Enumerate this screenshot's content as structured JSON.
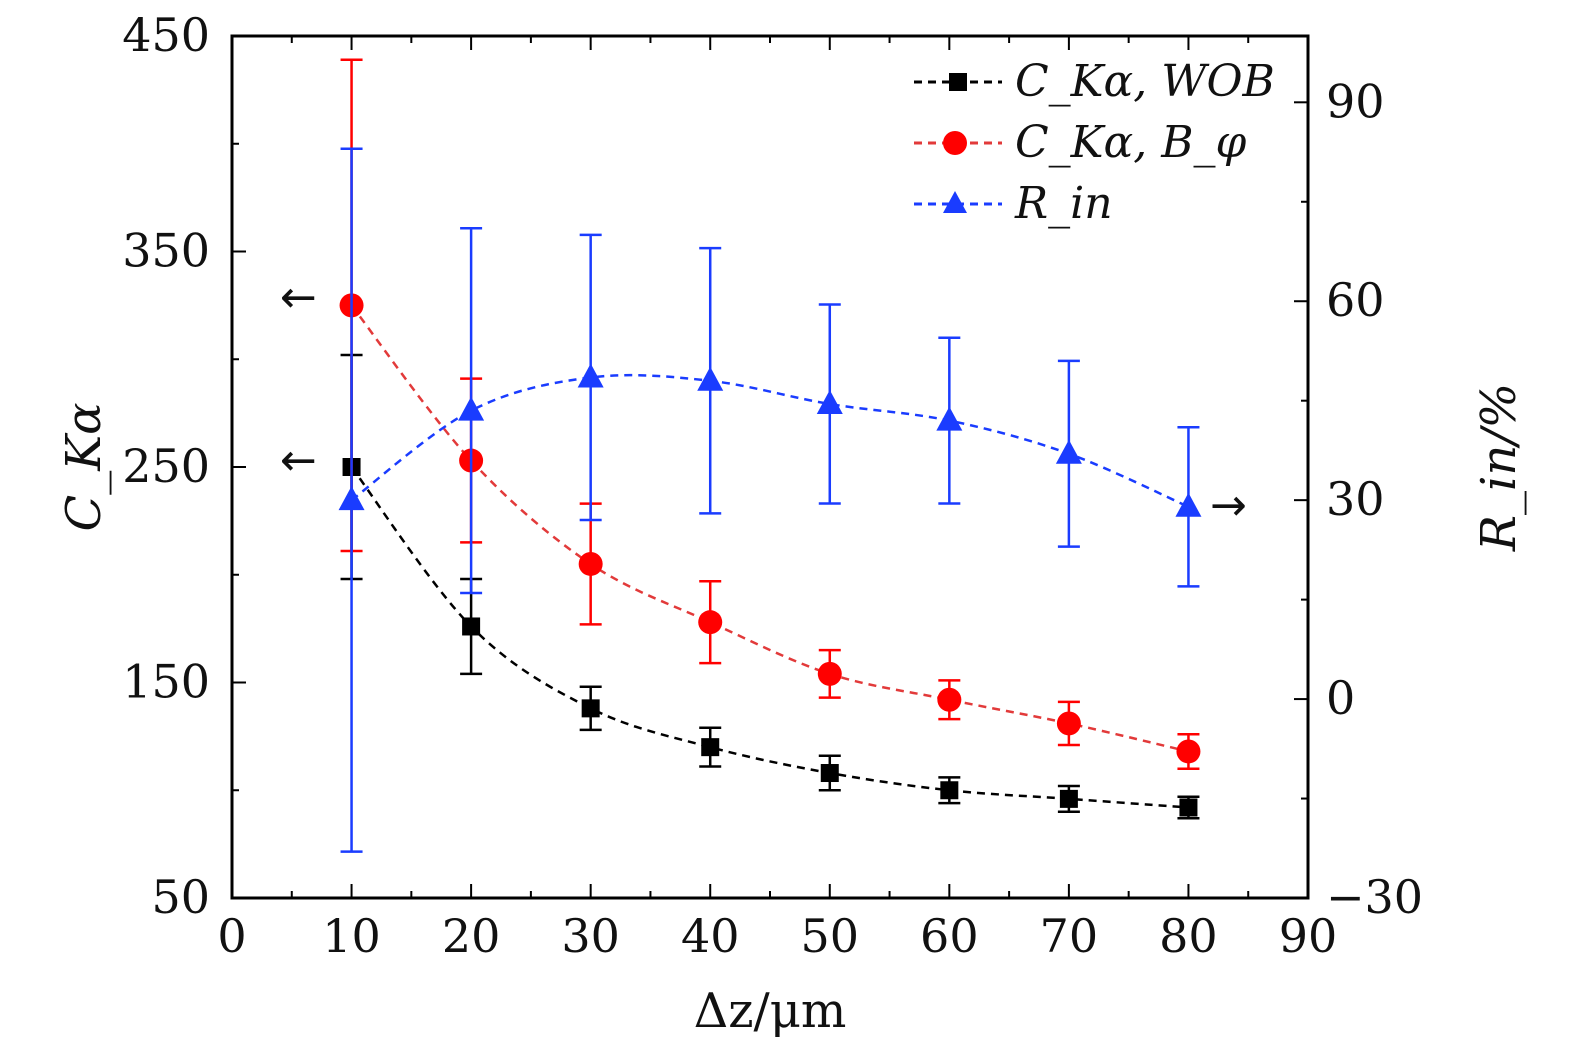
{
  "chart_data": {
    "type": "line",
    "x": [
      10,
      20,
      30,
      40,
      50,
      60,
      70,
      80
    ],
    "xlim": [
      0,
      90
    ],
    "xticks": [
      "0",
      "10",
      "20",
      "30",
      "40",
      "50",
      "60",
      "70",
      "80",
      "90"
    ],
    "xlabel": "Δz/μm",
    "ylabel": "C_Kα",
    "ylim": [
      50,
      450
    ],
    "yticks": [
      "50",
      "150",
      "250",
      "350",
      "450"
    ],
    "y2label": "R_in/%",
    "y2lim": [
      -30,
      100
    ],
    "y2ticks": [
      "−30",
      "0",
      "30",
      "60",
      "90"
    ],
    "grid": false,
    "legend_position": "top-right",
    "series": [
      {
        "name": "C_Kα, WOB",
        "axis": "left",
        "color": "#000000",
        "marker": "square",
        "values": [
          250,
          176,
          138,
          120,
          108,
          100,
          96,
          92
        ],
        "errors": [
          52,
          22,
          10,
          9,
          8,
          6,
          6,
          5
        ]
      },
      {
        "name": "C_Kα, B_φ",
        "axis": "left",
        "color": "#ff0000",
        "marker": "circle",
        "values": [
          325,
          253,
          205,
          178,
          154,
          142,
          131,
          118
        ],
        "errors": [
          114,
          38,
          28,
          19,
          11,
          9,
          10,
          8
        ]
      },
      {
        "name": "R_in",
        "axis": "right",
        "color": "#1a3cff",
        "marker": "triangle",
        "values": [
          30,
          43.5,
          48.5,
          48,
          44.5,
          42,
          37,
          29
        ],
        "errors": [
          53,
          27.5,
          21.5,
          20,
          15,
          12.5,
          14,
          12
        ]
      }
    ],
    "annotations": [
      "←",
      "←",
      "→"
    ]
  }
}
